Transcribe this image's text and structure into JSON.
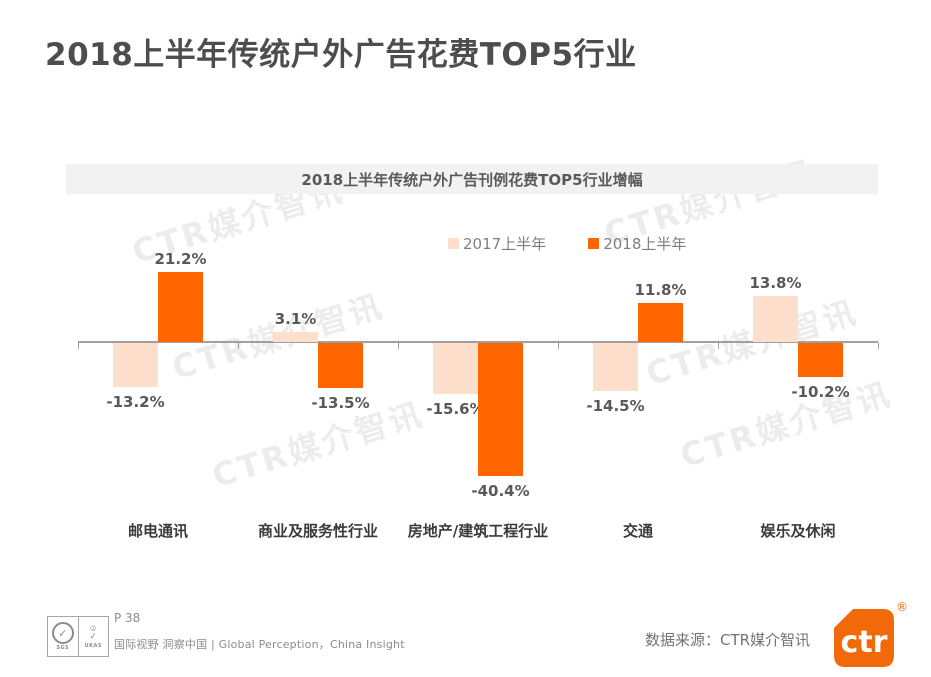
{
  "page": {
    "title": "2018上半年传统户外广告花费TOP5行业"
  },
  "watermark": {
    "text": "CTR媒介智讯"
  },
  "chart_data": {
    "type": "bar",
    "title": "2018上半年传统户外广告刊例花费TOP5行业增幅",
    "categories": [
      "邮电通讯",
      "商业及服务性行业",
      "房地产/建筑工程行业",
      "交通",
      "娱乐及休闲"
    ],
    "series": [
      {
        "name": "2017上半年",
        "color": "#fddfcb",
        "values": [
          -13.2,
          3.1,
          -15.6,
          -14.5,
          13.8
        ]
      },
      {
        "name": "2018上半年",
        "color": "#ff6600",
        "values": [
          21.2,
          -13.5,
          -40.4,
          11.8,
          -10.2
        ]
      }
    ],
    "value_suffix": "%",
    "ylim": [
      -45,
      25
    ],
    "grid": false,
    "legend_position": "top-center",
    "axis_color": "#a0a0a0"
  },
  "footer": {
    "page_label": "P 38",
    "tagline": "国际视野 洞察中国 | Global Perception，China Insight",
    "source_label": "数据来源：CTR媒介智讯",
    "cert_sgs": "SGS",
    "cert_ukas": "UKAS",
    "cert_check": "✓",
    "cert_crown": "♔",
    "logo_text": "ctr",
    "registered_mark": "®"
  },
  "colors": {
    "accent_orange": "#ff6600",
    "peach": "#fddfcb",
    "logo_orange": "#f2690a",
    "title_gray": "#4d4d4d",
    "band_bg": "#f2f2f2"
  }
}
